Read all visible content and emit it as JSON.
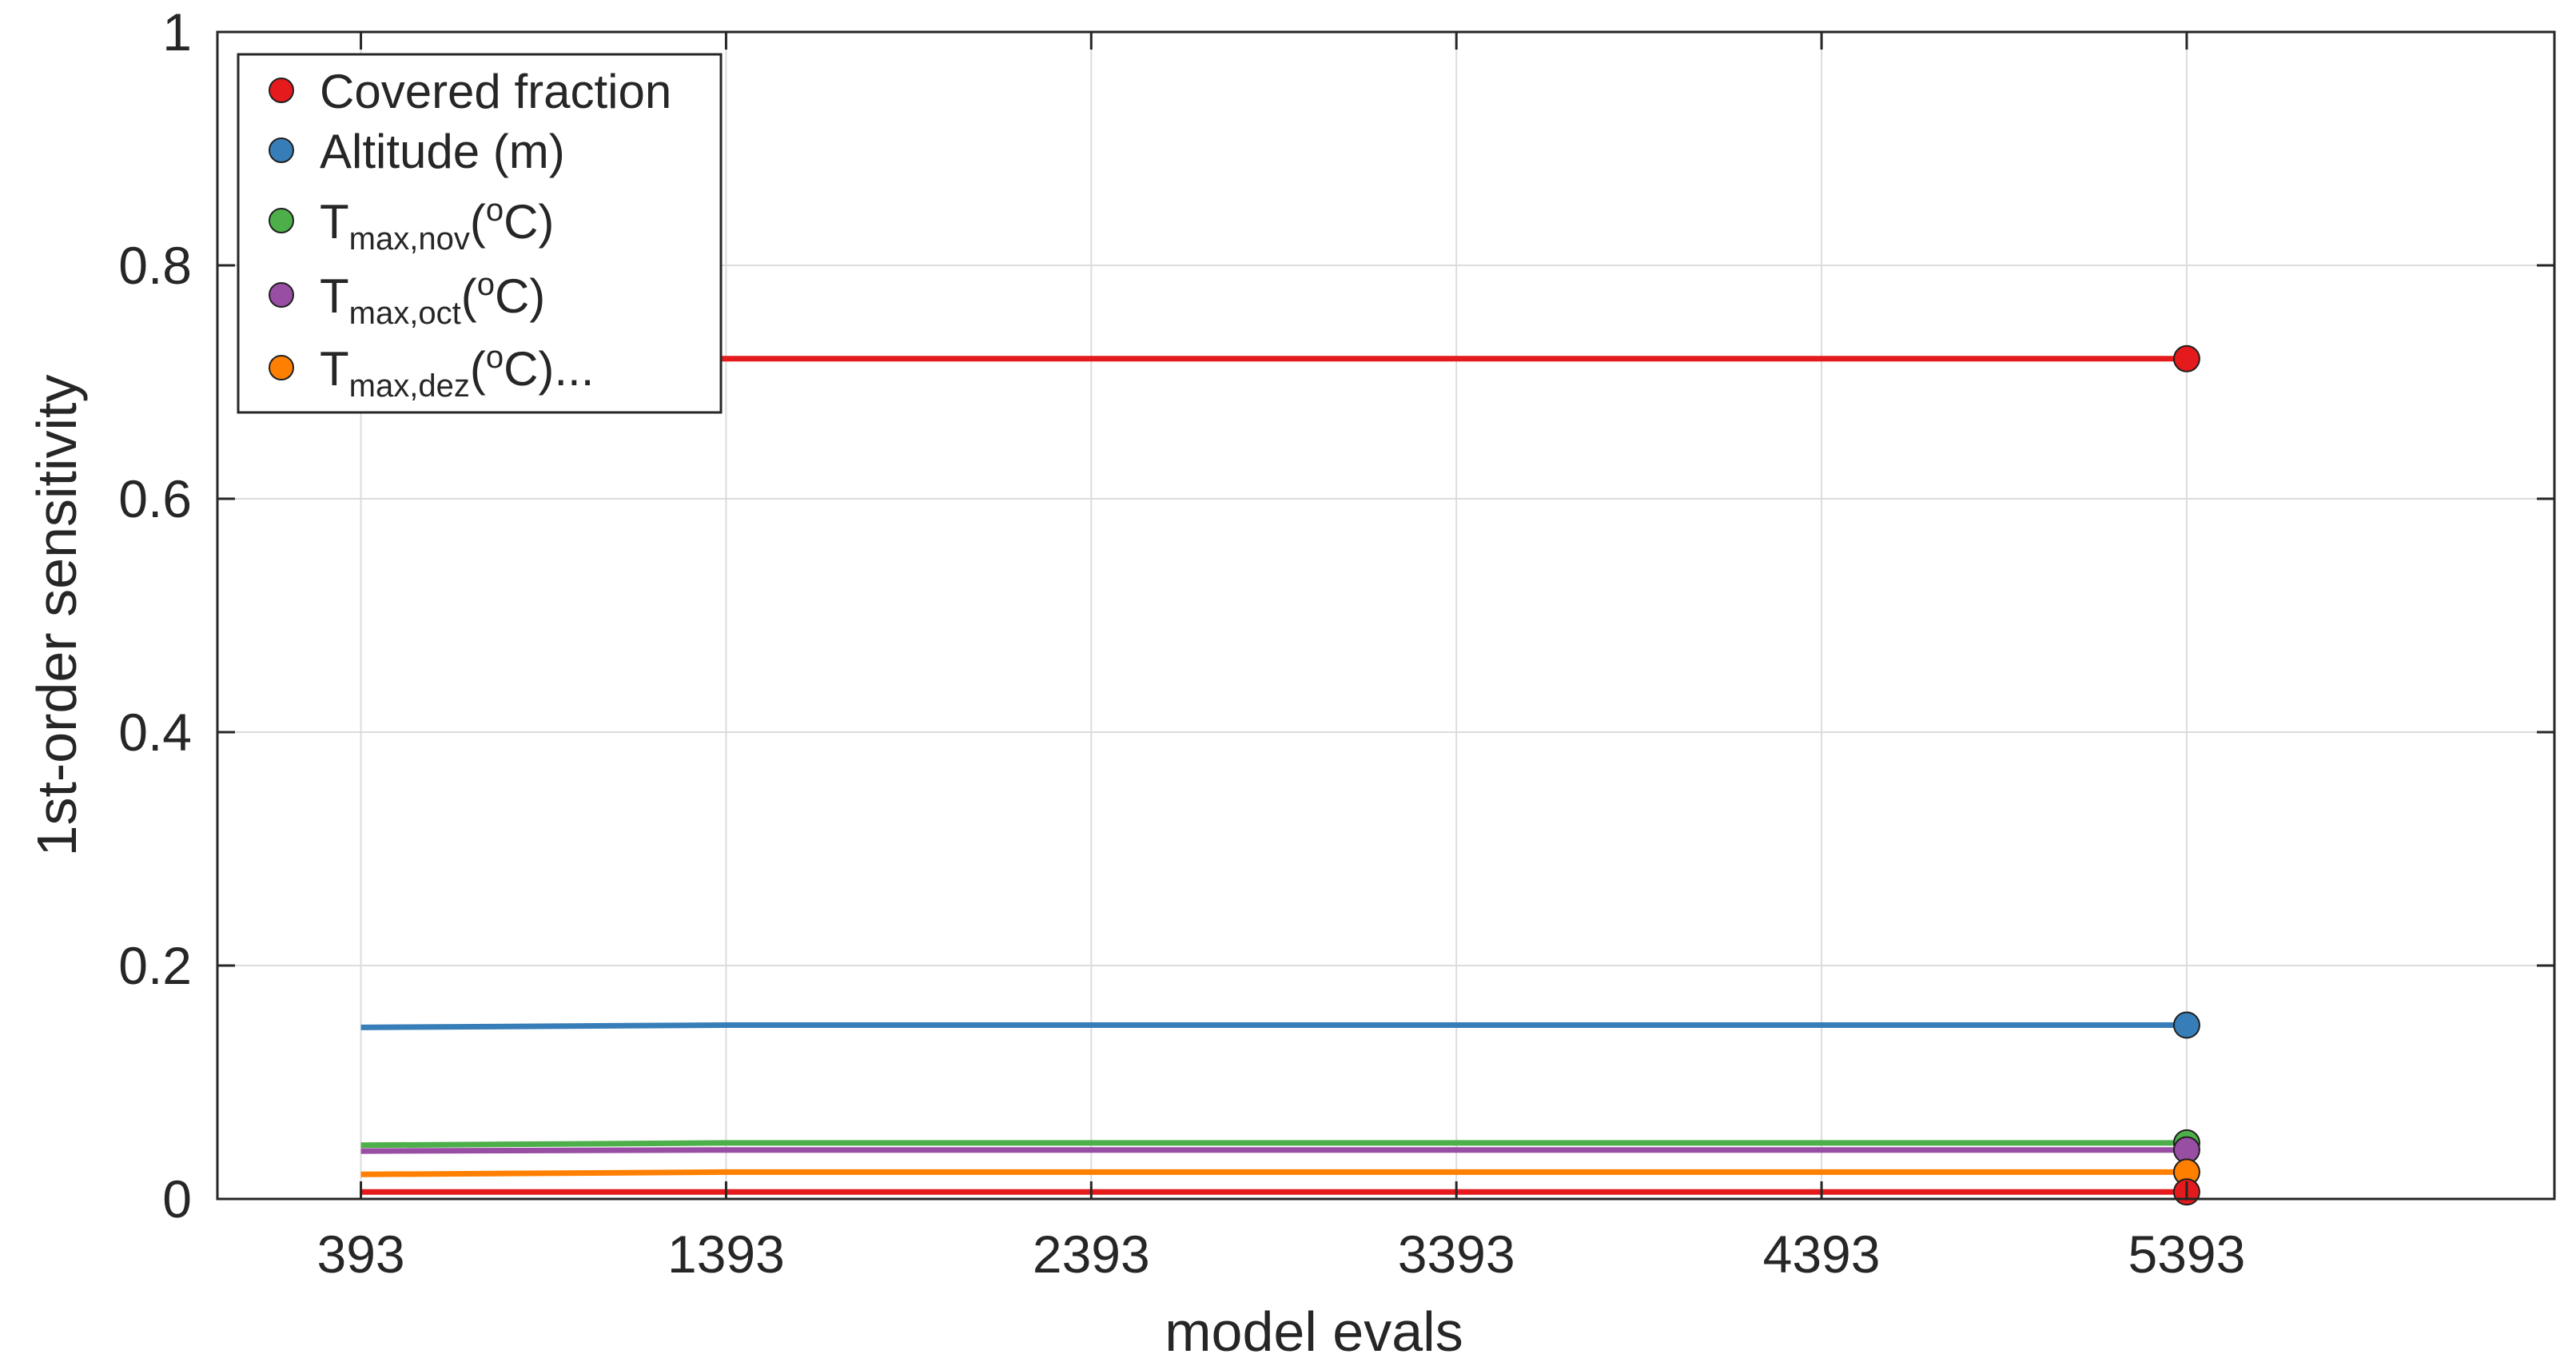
{
  "chart_data": {
    "type": "line",
    "title": "",
    "xlabel": "model evals",
    "ylabel": "1st-order sensitivity",
    "xlim": [
      0,
      6400
    ],
    "ylim": [
      0,
      1
    ],
    "x_ticks": [
      393,
      1393,
      2393,
      3393,
      4393,
      5393
    ],
    "x_tick_labels": [
      "393",
      "1393",
      "2393",
      "3393",
      "4393",
      "5393"
    ],
    "y_ticks": [
      0,
      0.2,
      0.4,
      0.6,
      0.8,
      1
    ],
    "y_tick_labels": [
      "0",
      "0.2",
      "0.4",
      "0.6",
      "0.8",
      "1"
    ],
    "grid": true,
    "legend_position": "top-left",
    "x": [
      393,
      1393,
      2393,
      3393,
      4393,
      5393
    ],
    "series": [
      {
        "name": "Covered fraction",
        "color": "#e41a1c",
        "values": [
          0.72,
          0.72,
          0.72,
          0.72,
          0.72,
          0.72
        ]
      },
      {
        "name": "Altitude (m)",
        "color": "#377eb8",
        "values": [
          0.147,
          0.149,
          0.149,
          0.149,
          0.149,
          0.149
        ]
      },
      {
        "name": "T_max,nov(oC)",
        "color": "#4daf4a",
        "values": [
          0.046,
          0.048,
          0.048,
          0.048,
          0.048,
          0.048
        ]
      },
      {
        "name": "T_max,oct(oC)",
        "color": "#984ea3",
        "values": [
          0.041,
          0.042,
          0.042,
          0.042,
          0.042,
          0.042
        ]
      },
      {
        "name": "T_max,dez(oC)...",
        "color": "#ff7f00",
        "values": [
          0.021,
          0.023,
          0.023,
          0.023,
          0.023,
          0.023
        ]
      },
      {
        "name": "",
        "color": "#e41a1c",
        "values": [
          0.006,
          0.006,
          0.006,
          0.006,
          0.006,
          0.006
        ]
      }
    ]
  },
  "legend": {
    "entries": [
      {
        "base": "Covered fraction",
        "sub": "",
        "suffix_sup": "",
        "suffix": "",
        "color": "#e41a1c"
      },
      {
        "base": "Altitude (m)",
        "sub": "",
        "suffix_sup": "",
        "suffix": "",
        "color": "#377eb8"
      },
      {
        "base": "T",
        "sub": "max,nov",
        "pre": "(",
        "sup": "o",
        "suffix": "C)",
        "color": "#4daf4a"
      },
      {
        "base": "T",
        "sub": "max,oct",
        "pre": "(",
        "sup": "o",
        "suffix": "C)",
        "color": "#984ea3"
      },
      {
        "base": "T",
        "sub": "max,dez",
        "pre": "(",
        "sup": "o",
        "suffix": "C)...",
        "color": "#ff7f00"
      }
    ]
  }
}
